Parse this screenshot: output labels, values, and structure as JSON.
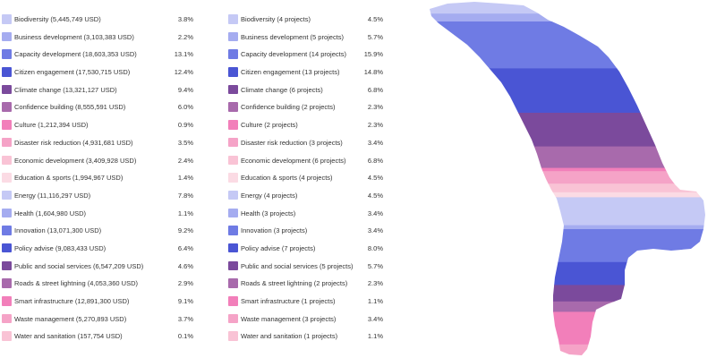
{
  "chart_data": [
    {
      "type": "table",
      "rows": [
        {
          "label": "Biodiversity (5,445,749 USD)",
          "value": "3.8%",
          "color": "#c5c9f5"
        },
        {
          "label": "Business development (3,103,383 USD)",
          "value": "2.2%",
          "color": "#a5acf0"
        },
        {
          "label": "Capacity development (18,603,353 USD)",
          "value": "13.1%",
          "color": "#6f7be4"
        },
        {
          "label": "Citizen engagement (17,530,715 USD)",
          "value": "12.4%",
          "color": "#4a55d4"
        },
        {
          "label": "Climate change (13,321,127 USD)",
          "value": "9.4%",
          "color": "#7b4a9c"
        },
        {
          "label": "Confidence building (8,555,591 USD)",
          "value": "6.0%",
          "color": "#a86aac"
        },
        {
          "label": "Culture (1,212,394 USD)",
          "value": "0.9%",
          "color": "#f27fba"
        },
        {
          "label": "Disaster risk reduction (4,931,681 USD)",
          "value": "3.5%",
          "color": "#f5a3c7"
        },
        {
          "label": "Economic development (3,409,928 USD)",
          "value": "2.4%",
          "color": "#f9c3d5"
        },
        {
          "label": "Education & sports (1,994,967 USD)",
          "value": "1.4%",
          "color": "#fbdbe4"
        },
        {
          "label": "Energy (11,116,297 USD)",
          "value": "7.8%",
          "color": "#c5c9f5"
        },
        {
          "label": "Health (1,604,980 USD)",
          "value": "1.1%",
          "color": "#a5acf0"
        },
        {
          "label": "Innovation (13,071,300 USD)",
          "value": "9.2%",
          "color": "#6f7be4"
        },
        {
          "label": "Policy advise (9,083,433 USD)",
          "value": "6.4%",
          "color": "#4a55d4"
        },
        {
          "label": "Public and social services (6,547,209 USD)",
          "value": "4.6%",
          "color": "#7b4a9c"
        },
        {
          "label": "Roads & street lightning (4,053,360 USD)",
          "value": "2.9%",
          "color": "#a86aac"
        },
        {
          "label": "Smart infrastructure (12,891,300 USD)",
          "value": "9.1%",
          "color": "#f27fba"
        },
        {
          "label": "Waste management (5,270,893 USD)",
          "value": "3.7%",
          "color": "#f5a3c7"
        },
        {
          "label": "Water and sanitation (157,754 USD)",
          "value": "0.1%",
          "color": "#f9c3d5"
        }
      ]
    },
    {
      "type": "table",
      "rows": [
        {
          "label": "Biodiversity (4 projects)",
          "value": "4.5%",
          "color": "#c5c9f5"
        },
        {
          "label": "Business development (5 projects)",
          "value": "5.7%",
          "color": "#a5acf0"
        },
        {
          "label": "Capacity development (14 projects)",
          "value": "15.9%",
          "color": "#6f7be4"
        },
        {
          "label": "Citizen engagement (13 projects)",
          "value": "14.8%",
          "color": "#4a55d4"
        },
        {
          "label": "Climate change (6 projects)",
          "value": "6.8%",
          "color": "#7b4a9c"
        },
        {
          "label": "Confidence building (2 projects)",
          "value": "2.3%",
          "color": "#a86aac"
        },
        {
          "label": "Culture (2 projects)",
          "value": "2.3%",
          "color": "#f27fba"
        },
        {
          "label": "Disaster risk reduction (3 projects)",
          "value": "3.4%",
          "color": "#f5a3c7"
        },
        {
          "label": "Economic development (6 projects)",
          "value": "6.8%",
          "color": "#f9c3d5"
        },
        {
          "label": "Education & sports (4 projects)",
          "value": "4.5%",
          "color": "#fbdbe4"
        },
        {
          "label": "Energy (4 projects)",
          "value": "4.5%",
          "color": "#c5c9f5"
        },
        {
          "label": "Health (3 projects)",
          "value": "3.4%",
          "color": "#a5acf0"
        },
        {
          "label": "Innovation (3 projects)",
          "value": "3.4%",
          "color": "#6f7be4"
        },
        {
          "label": "Policy advise (7 projects)",
          "value": "8.0%",
          "color": "#4a55d4"
        },
        {
          "label": "Public and social services (5 projects)",
          "value": "5.7%",
          "color": "#7b4a9c"
        },
        {
          "label": "Roads & street lightning (2 projects)",
          "value": "2.3%",
          "color": "#a86aac"
        },
        {
          "label": "Smart infrastructure (1 projects)",
          "value": "1.1%",
          "color": "#f27fba"
        },
        {
          "label": "Waste management (3 projects)",
          "value": "3.4%",
          "color": "#f5a3c7"
        },
        {
          "label": "Water and sanitation (1 projects)",
          "value": "1.1%",
          "color": "#f9c3d5"
        }
      ]
    }
  ],
  "map": {
    "bands": [
      {
        "color": "#c5c9f5",
        "share": 3.8
      },
      {
        "color": "#a5acf0",
        "share": 2.2
      },
      {
        "color": "#6f7be4",
        "share": 13.1
      },
      {
        "color": "#4a55d4",
        "share": 12.4
      },
      {
        "color": "#7b4a9c",
        "share": 9.4
      },
      {
        "color": "#a86aac",
        "share": 6.0
      },
      {
        "color": "#f27fba",
        "share": 0.9
      },
      {
        "color": "#f5a3c7",
        "share": 3.5
      },
      {
        "color": "#f9c3d5",
        "share": 2.4
      },
      {
        "color": "#fbdbe4",
        "share": 1.4
      },
      {
        "color": "#c5c9f5",
        "share": 7.8
      },
      {
        "color": "#a5acf0",
        "share": 1.1
      },
      {
        "color": "#6f7be4",
        "share": 9.2
      },
      {
        "color": "#4a55d4",
        "share": 6.4
      },
      {
        "color": "#7b4a9c",
        "share": 4.6
      },
      {
        "color": "#a86aac",
        "share": 2.9
      },
      {
        "color": "#f27fba",
        "share": 9.1
      },
      {
        "color": "#f5a3c7",
        "share": 3.7
      },
      {
        "color": "#f9c3d5",
        "share": 0.1
      }
    ]
  }
}
